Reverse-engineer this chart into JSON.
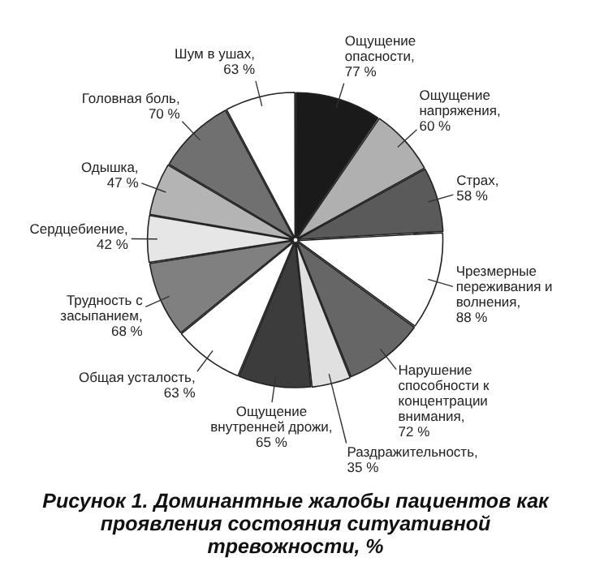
{
  "chart_data": {
    "type": "pie",
    "title": "Рисунок 1. Доминантные жалобы пациентов как проявления состояния ситуативной тревожности, %",
    "categories": [
      "Ощущение опасности",
      "Ощущение напряжения",
      "Страх",
      "Чрезмерные переживания и волнения",
      "Нарушение способности к концентрации внимания",
      "Раздражительность",
      "Ощущение внутренней дрожи",
      "Общая усталость",
      "Трудность с засыпанием",
      "Сердцебиение",
      "Одышка",
      "Головная боль",
      "Шум в ушах"
    ],
    "values": [
      77,
      60,
      58,
      88,
      72,
      35,
      65,
      63,
      68,
      42,
      47,
      70,
      63
    ],
    "value_labels": [
      ",\n77 %",
      ",\n60 %",
      ",\n58 %",
      ",\n88 %",
      ",\n72 %",
      ",\n35 %",
      ",\n65 %",
      ",\n63 %",
      ",\n68 %",
      ",\n42 %",
      ",\n47 %",
      ",\n70 %",
      ",\n63 %"
    ],
    "colors": [
      "#1a1a1a",
      "#b0b0b0",
      "#5a5a5a",
      "#ffffff",
      "#666666",
      "#e0e0e0",
      "#3c3c3c",
      "#ffffff",
      "#808080",
      "#e6e6e6",
      "#b4b4b4",
      "#707070",
      "#ffffff"
    ],
    "legend": false
  }
}
